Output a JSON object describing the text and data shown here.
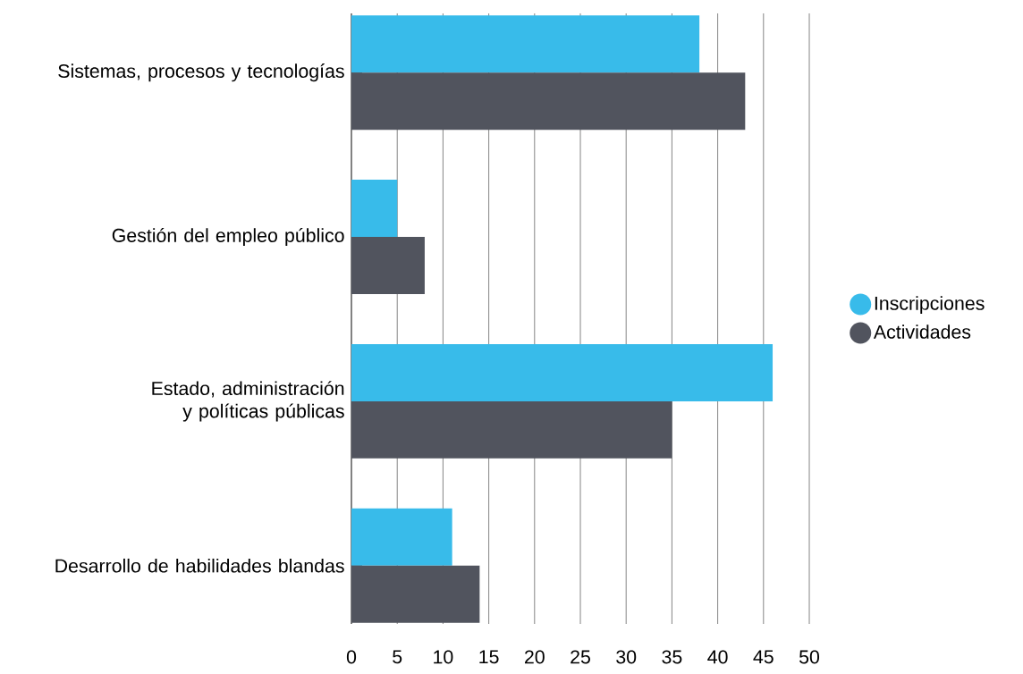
{
  "chart_data": {
    "type": "bar",
    "orientation": "horizontal",
    "categories": [
      "Sistemas, procesos y tecnologías",
      "Gestión del empleo público",
      "Estado, administración y políticas públicas",
      "Desarrollo de habilidades blandas"
    ],
    "series": [
      {
        "name": "Inscripciones",
        "color": "#38bbea",
        "values": [
          38,
          5,
          46,
          11
        ]
      },
      {
        "name": "Actividades",
        "color": "#51545e",
        "values": [
          43,
          8,
          35,
          14
        ]
      }
    ],
    "xlim": [
      0,
      50
    ],
    "xticks": [
      0,
      5,
      10,
      15,
      20,
      25,
      30,
      35,
      40,
      45,
      50
    ],
    "grid": "x",
    "legend": "right"
  }
}
